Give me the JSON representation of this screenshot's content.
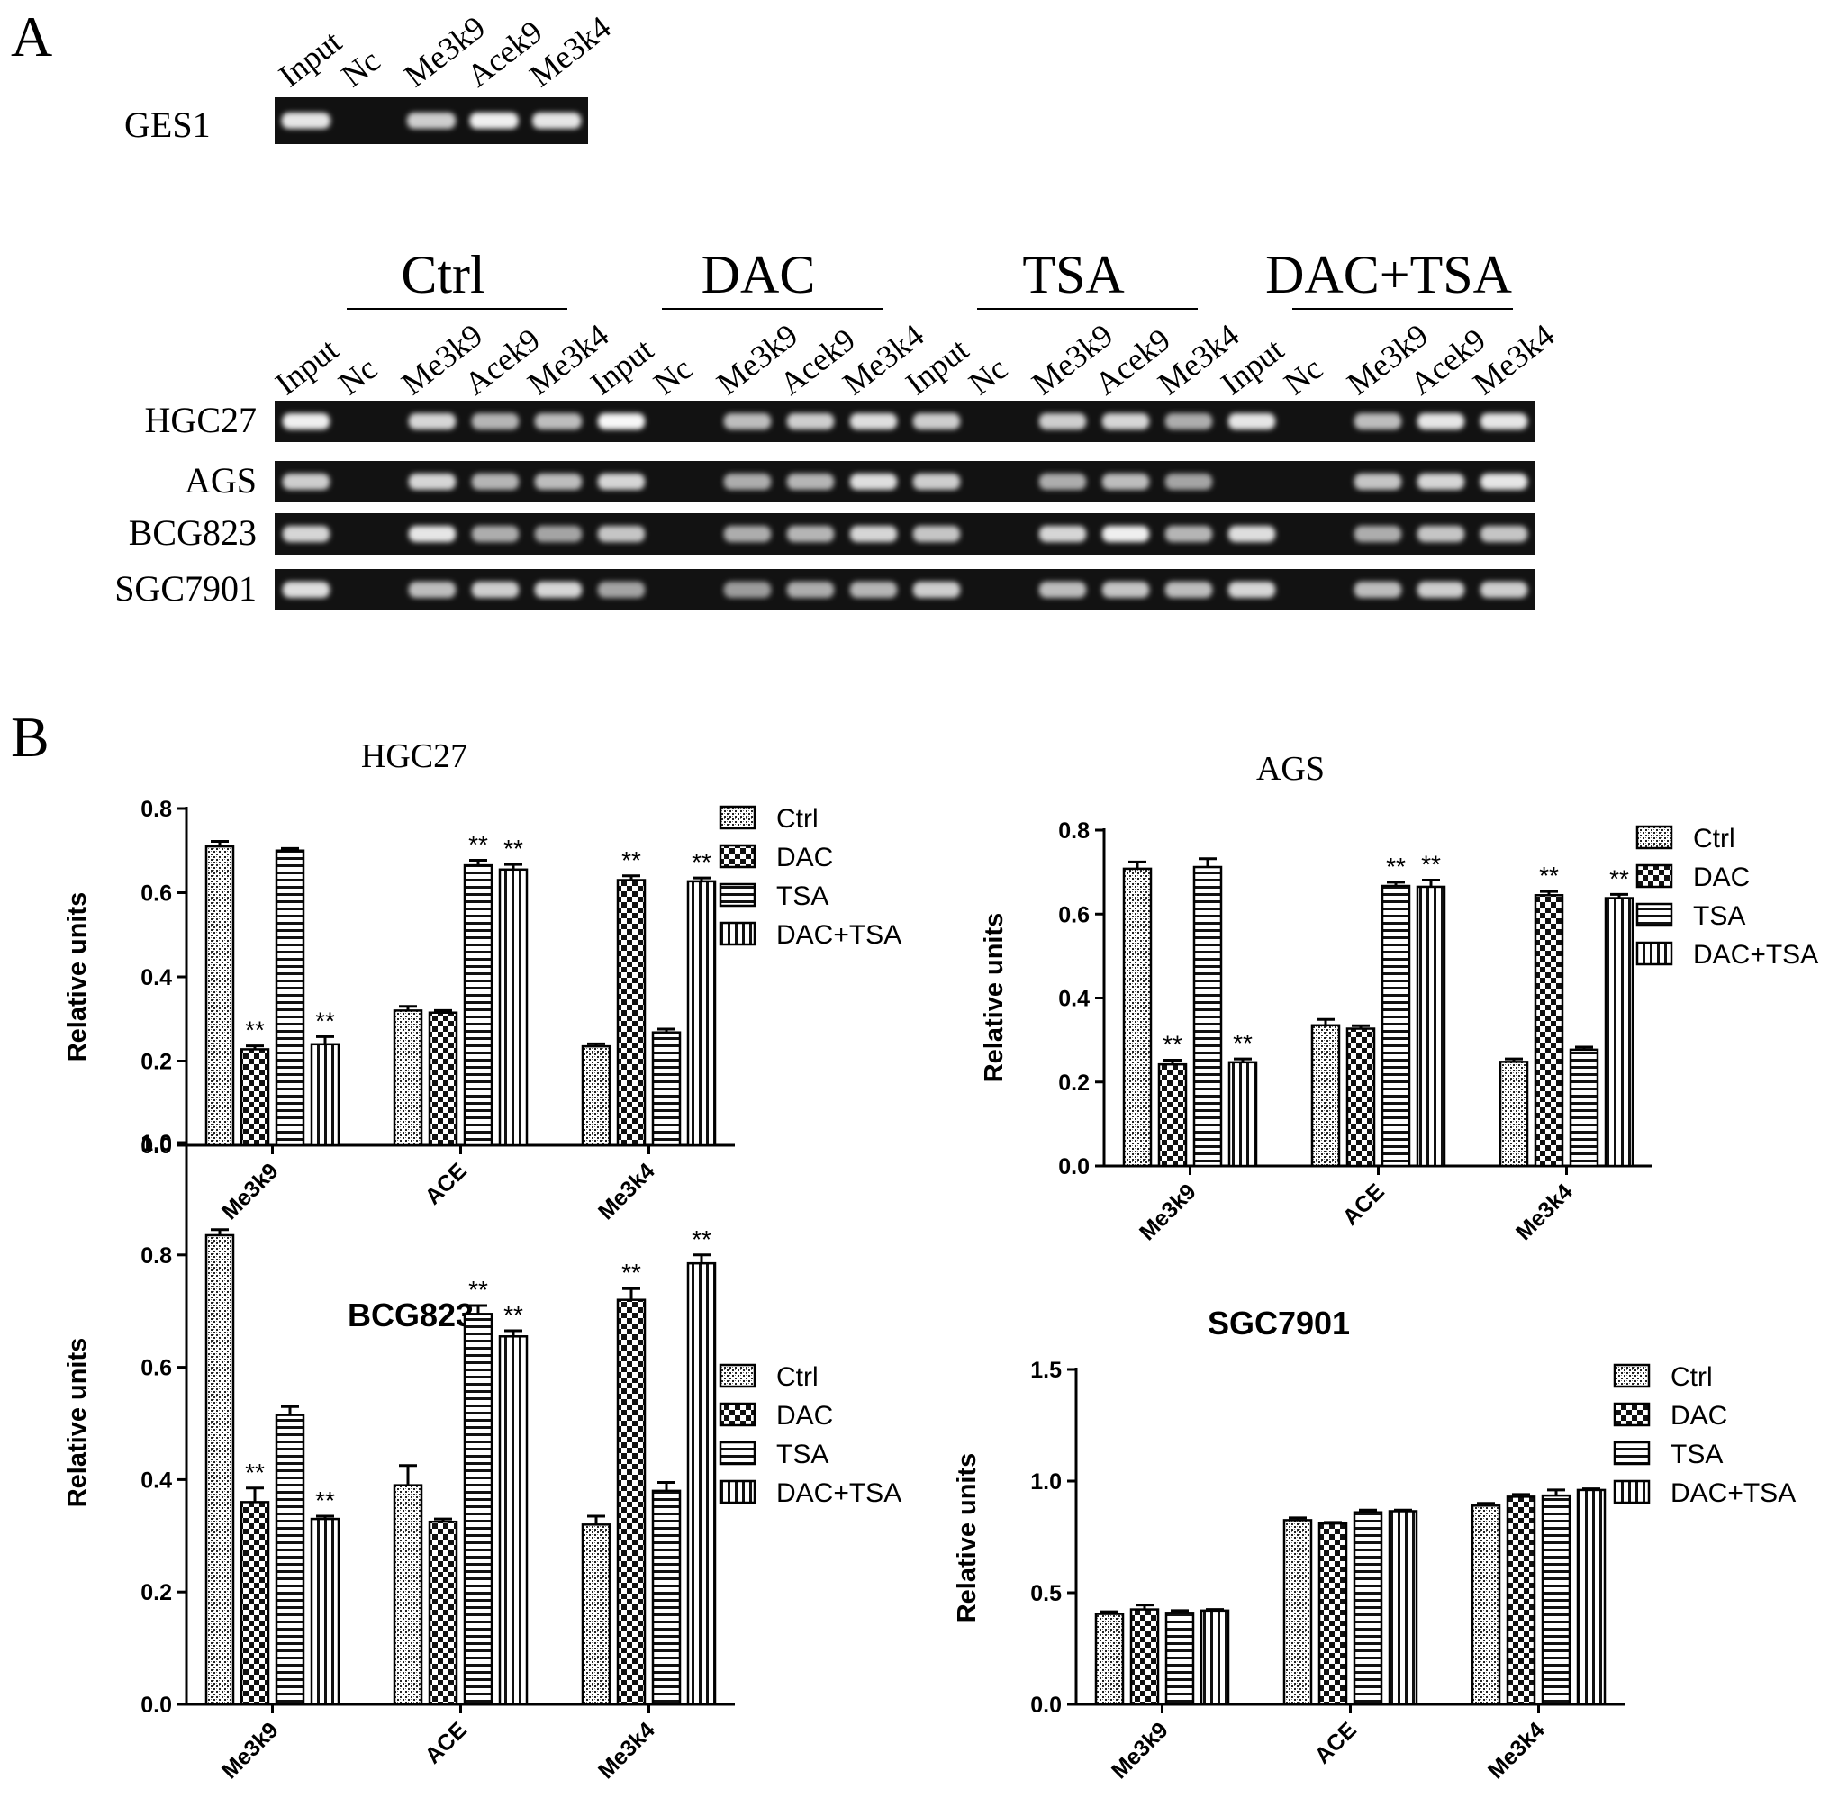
{
  "panel_labels": [
    "A",
    "B"
  ],
  "gel_ges1": {
    "row_label": "GES1",
    "lanes": [
      "Input",
      "Nc",
      "Me3k9",
      "Acek9",
      "Me3k4"
    ],
    "band_intensity": [
      0.85,
      0.0,
      0.7,
      0.9,
      0.85
    ]
  },
  "gel_cells": {
    "groups": [
      "Ctrl",
      "DAC",
      "TSA",
      "DAC+TSA"
    ],
    "lanes": [
      "Input",
      "Nc",
      "Me3k9",
      "Acek9",
      "Me3k4"
    ],
    "rows": [
      {
        "label": "HGC27",
        "bands": [
          0.9,
          0,
          0.75,
          0.55,
          0.6,
          0.95,
          0,
          0.6,
          0.7,
          0.8,
          0.7,
          0,
          0.7,
          0.75,
          0.5,
          0.85,
          0,
          0.6,
          0.85,
          0.85
        ]
      },
      {
        "label": "AGS",
        "bands": [
          0.7,
          0,
          0.75,
          0.55,
          0.6,
          0.75,
          0,
          0.5,
          0.55,
          0.8,
          0.7,
          0,
          0.5,
          0.6,
          0.45,
          0,
          0,
          0.65,
          0.75,
          0.85
        ]
      },
      {
        "label": "BCG823",
        "bands": [
          0.75,
          0,
          0.85,
          0.5,
          0.45,
          0.65,
          0,
          0.5,
          0.55,
          0.75,
          0.65,
          0,
          0.75,
          0.9,
          0.55,
          0.8,
          0,
          0.5,
          0.65,
          0.65
        ]
      },
      {
        "label": "SGC7901",
        "bands": [
          0.8,
          0,
          0.6,
          0.7,
          0.75,
          0.45,
          0,
          0.4,
          0.5,
          0.55,
          0.7,
          0,
          0.6,
          0.65,
          0.6,
          0.75,
          0,
          0.6,
          0.7,
          0.7
        ]
      }
    ]
  },
  "legend": [
    "Ctrl",
    "DAC",
    "TSA",
    "DAC+TSA"
  ],
  "chart_data": [
    {
      "type": "bar",
      "title": "HGC27",
      "ylabel": "Relative units",
      "categories": [
        "Me3k9",
        "ACE",
        "Me3k4"
      ],
      "ylim": [
        0,
        0.8
      ],
      "yticks": [
        "0.0",
        "0.2",
        "0.4",
        "0.6",
        "0.8"
      ],
      "series": [
        {
          "name": "Ctrl",
          "values": [
            0.71,
            0.32,
            0.235
          ],
          "errors": [
            0.012,
            0.01,
            0.006
          ]
        },
        {
          "name": "DAC",
          "values": [
            0.228,
            0.315,
            0.63
          ],
          "errors": [
            0.008,
            0.005,
            0.01
          ]
        },
        {
          "name": "TSA",
          "values": [
            0.7,
            0.665,
            0.268
          ],
          "errors": [
            0.005,
            0.012,
            0.008
          ]
        },
        {
          "name": "DAC+TSA",
          "values": [
            0.24,
            0.655,
            0.627
          ],
          "errors": [
            0.018,
            0.012,
            0.008
          ]
        }
      ],
      "annotations": [
        {
          "category": "Me3k9",
          "series": "DAC",
          "text": "**"
        },
        {
          "category": "Me3k9",
          "series": "DAC+TSA",
          "text": "**"
        },
        {
          "category": "ACE",
          "series": "TSA",
          "text": "**"
        },
        {
          "category": "ACE",
          "series": "DAC+TSA",
          "text": "**"
        },
        {
          "category": "Me3k4",
          "series": "DAC",
          "text": "**"
        },
        {
          "category": "Me3k4",
          "series": "DAC+TSA",
          "text": "**"
        }
      ]
    },
    {
      "type": "bar",
      "title": "AGS",
      "ylabel": "Relative units",
      "categories": [
        "Me3k9",
        "ACE",
        "Me3k4"
      ],
      "ylim": [
        0,
        0.8
      ],
      "yticks": [
        "0.0",
        "0.2",
        "0.4",
        "0.6",
        "0.8"
      ],
      "series": [
        {
          "name": "Ctrl",
          "values": [
            0.708,
            0.335,
            0.248
          ],
          "errors": [
            0.016,
            0.014,
            0.007
          ]
        },
        {
          "name": "DAC",
          "values": [
            0.242,
            0.327,
            0.645
          ],
          "errors": [
            0.01,
            0.007,
            0.009
          ]
        },
        {
          "name": "TSA",
          "values": [
            0.712,
            0.667,
            0.277
          ],
          "errors": [
            0.02,
            0.009,
            0.006
          ]
        },
        {
          "name": "DAC+TSA",
          "values": [
            0.247,
            0.665,
            0.638
          ],
          "errors": [
            0.008,
            0.016,
            0.009
          ]
        }
      ],
      "annotations": [
        {
          "category": "Me3k9",
          "series": "DAC",
          "text": "**"
        },
        {
          "category": "Me3k9",
          "series": "DAC+TSA",
          "text": "**"
        },
        {
          "category": "ACE",
          "series": "TSA",
          "text": "**"
        },
        {
          "category": "ACE",
          "series": "DAC+TSA",
          "text": "**"
        },
        {
          "category": "Me3k4",
          "series": "DAC",
          "text": "**"
        },
        {
          "category": "Me3k4",
          "series": "DAC+TSA",
          "text": "**"
        }
      ]
    },
    {
      "type": "bar",
      "title": "BCG823",
      "ylabel": "Relative units",
      "categories": [
        "Me3k9",
        "ACE",
        "Me3k4"
      ],
      "ylim": [
        0,
        1.0
      ],
      "yticks": [
        "0.0",
        "0.2",
        "0.4",
        "0.6",
        "0.8",
        "1.0"
      ],
      "series": [
        {
          "name": "Ctrl",
          "values": [
            0.835,
            0.39,
            0.32
          ],
          "errors": [
            0.01,
            0.035,
            0.015
          ]
        },
        {
          "name": "DAC",
          "values": [
            0.36,
            0.325,
            0.72
          ],
          "errors": [
            0.025,
            0.005,
            0.02
          ]
        },
        {
          "name": "TSA",
          "values": [
            0.515,
            0.695,
            0.38
          ],
          "errors": [
            0.015,
            0.015,
            0.015
          ]
        },
        {
          "name": "DAC+TSA",
          "values": [
            0.33,
            0.655,
            0.785
          ],
          "errors": [
            0.005,
            0.01,
            0.015
          ]
        }
      ],
      "annotations": [
        {
          "category": "Me3k9",
          "series": "DAC",
          "text": "**"
        },
        {
          "category": "Me3k9",
          "series": "DAC+TSA",
          "text": "**"
        },
        {
          "category": "ACE",
          "series": "TSA",
          "text": "**"
        },
        {
          "category": "ACE",
          "series": "DAC+TSA",
          "text": "**"
        },
        {
          "category": "Me3k4",
          "series": "DAC",
          "text": "**"
        },
        {
          "category": "Me3k4",
          "series": "DAC+TSA",
          "text": "**"
        }
      ]
    },
    {
      "type": "bar",
      "title": "SGC7901",
      "ylabel": "Relative units",
      "categories": [
        "Me3k9",
        "ACE",
        "Me3k4"
      ],
      "ylim": [
        0,
        1.5
      ],
      "yticks": [
        "0.0",
        "0.5",
        "1.0",
        "1.5"
      ],
      "series": [
        {
          "name": "Ctrl",
          "values": [
            0.405,
            0.825,
            0.89
          ],
          "errors": [
            0.01,
            0.01,
            0.01
          ]
        },
        {
          "name": "DAC",
          "values": [
            0.425,
            0.81,
            0.93
          ],
          "errors": [
            0.02,
            0.005,
            0.01
          ]
        },
        {
          "name": "TSA",
          "values": [
            0.41,
            0.86,
            0.935
          ],
          "errors": [
            0.01,
            0.01,
            0.025
          ]
        },
        {
          "name": "DAC+TSA",
          "values": [
            0.42,
            0.865,
            0.96
          ],
          "errors": [
            0.005,
            0.005,
            0.005
          ]
        }
      ],
      "annotations": []
    }
  ]
}
